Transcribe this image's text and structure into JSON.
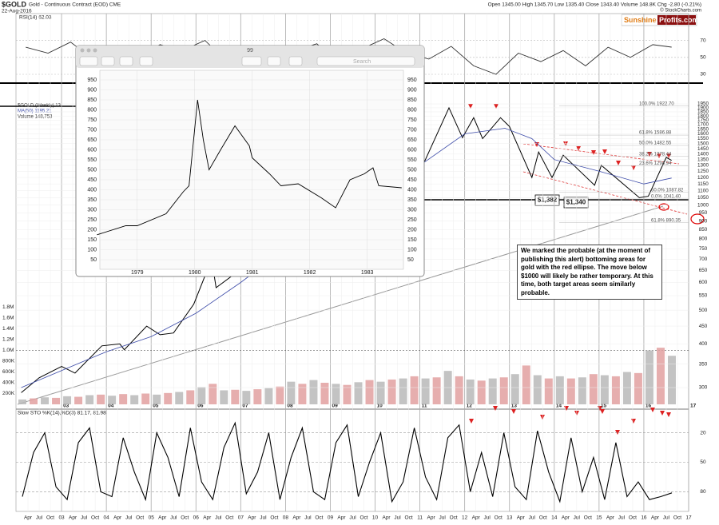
{
  "header": {
    "symbol": "$GOLD",
    "subtitle": "Gold - Continuous Contract (EOD) CME",
    "date": "22-Aug-2016",
    "quote": "Open 1345.00  High 1345.70  Low 1335.40  Close 1343.40  Volume 148.8K  Chg -2.80 (-0.21%)",
    "source": "© StockCharts.com"
  },
  "logo": {
    "part1": "Sunshine",
    "part2": "Profits.com"
  },
  "chart_data": {
    "type": "line",
    "xlim": [
      2002,
      2017
    ],
    "xticks": [
      {
        "value": 2002.25,
        "label": "Apr"
      },
      {
        "value": 2002.5,
        "label": "Jul"
      },
      {
        "value": 2002.75,
        "label": "Oct"
      },
      {
        "value": 2003,
        "label": "03"
      },
      {
        "value": 2003.25,
        "label": "Apr"
      },
      {
        "value": 2003.5,
        "label": "Jul"
      },
      {
        "value": 2003.75,
        "label": "Oct"
      },
      {
        "value": 2004,
        "label": "04"
      },
      {
        "value": 2004.25,
        "label": "Apr"
      },
      {
        "value": 2004.5,
        "label": "Jul"
      },
      {
        "value": 2004.75,
        "label": "Oct"
      },
      {
        "value": 2005,
        "label": "05"
      },
      {
        "value": 2005.25,
        "label": "Apr"
      },
      {
        "value": 2005.5,
        "label": "Jul"
      },
      {
        "value": 2005.75,
        "label": "Oct"
      },
      {
        "value": 2006,
        "label": "06"
      },
      {
        "value": 2006.25,
        "label": "Apr"
      },
      {
        "value": 2006.5,
        "label": "Jul"
      },
      {
        "value": 2006.75,
        "label": "Oct"
      },
      {
        "value": 2007,
        "label": "07"
      },
      {
        "value": 2007.25,
        "label": "Apr"
      },
      {
        "value": 2007.5,
        "label": "Jul"
      },
      {
        "value": 2007.75,
        "label": "Oct"
      },
      {
        "value": 2008,
        "label": "08"
      },
      {
        "value": 2008.25,
        "label": "Apr"
      },
      {
        "value": 2008.5,
        "label": "Jul"
      },
      {
        "value": 2008.75,
        "label": "Oct"
      },
      {
        "value": 2009,
        "label": "09"
      },
      {
        "value": 2009.25,
        "label": "Apr"
      },
      {
        "value": 2009.5,
        "label": "Jul"
      },
      {
        "value": 2009.75,
        "label": "Oct"
      },
      {
        "value": 2010,
        "label": "10"
      },
      {
        "value": 2010.25,
        "label": "Apr"
      },
      {
        "value": 2010.5,
        "label": "Jul"
      },
      {
        "value": 2010.75,
        "label": "Oct"
      },
      {
        "value": 2011,
        "label": "11"
      },
      {
        "value": 2011.25,
        "label": "Apr"
      },
      {
        "value": 2011.5,
        "label": "Jul"
      },
      {
        "value": 2011.75,
        "label": "Oct"
      },
      {
        "value": 2012,
        "label": "12"
      },
      {
        "value": 2012.25,
        "label": "Apr"
      },
      {
        "value": 2012.5,
        "label": "Jul"
      },
      {
        "value": 2012.75,
        "label": "Oct"
      },
      {
        "value": 2013,
        "label": "13"
      },
      {
        "value": 2013.25,
        "label": "Apr"
      },
      {
        "value": 2013.5,
        "label": "Jul"
      },
      {
        "value": 2013.75,
        "label": "Oct"
      },
      {
        "value": 2014,
        "label": "14"
      },
      {
        "value": 2014.25,
        "label": "Apr"
      },
      {
        "value": 2014.5,
        "label": "Jul"
      },
      {
        "value": 2014.75,
        "label": "Oct"
      },
      {
        "value": 2015,
        "label": "15"
      },
      {
        "value": 2015.25,
        "label": "Apr"
      },
      {
        "value": 2015.5,
        "label": "Jul"
      },
      {
        "value": 2015.75,
        "label": "Oct"
      },
      {
        "value": 2016,
        "label": "16"
      },
      {
        "value": 2016.25,
        "label": "Apr"
      },
      {
        "value": 2016.5,
        "label": "Jul"
      },
      {
        "value": 2016.75,
        "label": "Oct"
      },
      {
        "value": 2017,
        "label": "17"
      }
    ],
    "rsi": {
      "label": "RSI(14) 62.03",
      "ylim": [
        20,
        100
      ],
      "yticks": [
        70,
        50,
        30
      ],
      "x": [
        2002.2,
        2002.7,
        2003.2,
        2003.7,
        2004.2,
        2004.7,
        2005.2,
        2005.7,
        2006.2,
        2006.7,
        2007.2,
        2007.7,
        2008.2,
        2008.7,
        2009.2,
        2009.7,
        2010.2,
        2010.7,
        2011.2,
        2011.7,
        2012.2,
        2012.7,
        2013.2,
        2013.7,
        2014.2,
        2014.7,
        2015.2,
        2015.7,
        2016.2,
        2016.62
      ],
      "values": [
        62,
        55,
        68,
        48,
        60,
        52,
        65,
        58,
        70,
        45,
        62,
        50,
        58,
        66,
        42,
        60,
        72,
        55,
        48,
        63,
        40,
        30,
        55,
        45,
        58,
        40,
        62,
        50,
        65,
        62.03
      ],
      "color": "#333333"
    },
    "price": {
      "legend": "$GOLD (Weekly) 13",
      "ma_legend": "MA(50) 1195.21",
      "volume_legend": "Volume 148,753",
      "log_scale": true,
      "ylim": [
        300,
        1950
      ],
      "yticks": [
        1950,
        1900,
        1850,
        1800,
        1750,
        1700,
        1650,
        1600,
        1550,
        1500,
        1450,
        1400,
        1350,
        1300,
        1250,
        1200,
        1150,
        1100,
        1050,
        1000,
        950,
        900,
        850,
        800,
        750,
        700,
        650,
        600,
        550,
        500,
        450,
        400,
        350,
        300
      ],
      "series": [
        {
          "name": "$GOLD (Weekly)",
          "color": "#000000",
          "x": [
            2002.1,
            2002.5,
            2003.0,
            2003.3,
            2003.9,
            2004.3,
            2004.4,
            2004.9,
            2005.2,
            2005.5,
            2005.95,
            2006.35,
            2006.45,
            2006.9,
            2007.5,
            2007.9,
            2008.2,
            2008.8,
            2009.2,
            2009.9,
            2010.1,
            2010.9,
            2011.1,
            2011.65,
            2011.95,
            2012.2,
            2012.4,
            2012.8,
            2013.0,
            2013.5,
            2013.65,
            2013.95,
            2014.2,
            2014.9,
            2015.05,
            2015.9,
            2016.1,
            2016.5,
            2016.62
          ],
          "values": [
            290,
            320,
            345,
            330,
            395,
            400,
            385,
            450,
            425,
            430,
            520,
            700,
            580,
            640,
            660,
            820,
            990,
            730,
            940,
            1200,
            1080,
            1420,
            1330,
            1900,
            1560,
            1780,
            1550,
            1780,
            1680,
            1200,
            1420,
            1200,
            1390,
            1140,
            1300,
            1050,
            1060,
            1370,
            1343.4
          ]
        },
        {
          "name": "MA(50)",
          "color": "#3b4aa8",
          "x": [
            2002.1,
            2004,
            2005,
            2006,
            2007,
            2008,
            2009,
            2010,
            2011,
            2012,
            2012.9,
            2013.5,
            2014,
            2015,
            2016,
            2016.62
          ],
          "values": [
            300,
            380,
            420,
            490,
            600,
            750,
            850,
            1050,
            1300,
            1600,
            1660,
            1550,
            1350,
            1250,
            1150,
            1195.21
          ]
        }
      ],
      "fib_levels": [
        {
          "label": "100.0% 1922.70",
          "value": 1922.7
        },
        {
          "label": "61.8% 1586.88",
          "value": 1586.88
        },
        {
          "label": "50.0% 1482.55",
          "value": 1482.55
        },
        {
          "label": "38.2% 1378.44",
          "value": 1378.44
        },
        {
          "label": "23.6% 1294.94",
          "value": 1294.94
        },
        {
          "label": "50.0% 1087.82",
          "value": 1087.82
        },
        {
          "label": "0.0% 1041.40",
          "value": 1041.4
        },
        {
          "label": "61.8% 890.35",
          "value": 890.35
        }
      ],
      "price_labels": [
        "$1,382",
        "$1,340"
      ],
      "note": "We marked the probable (at the moment of publishing this alert) bottoming areas for gold with the red ellipse. The move below $1000 will likely be rather temporary. At this time, both target areas seem similarly probable."
    },
    "volume": {
      "ylim": [
        0,
        1800000
      ],
      "yticks": [
        {
          "value": 1800000,
          "label": "1.8M"
        },
        {
          "value": 1600000,
          "label": "1.6M"
        },
        {
          "value": 1400000,
          "label": "1.4M"
        },
        {
          "value": 1200000,
          "label": "1.2M"
        },
        {
          "value": 1000000,
          "label": "1.0M"
        },
        {
          "value": 800000,
          "label": "800K"
        },
        {
          "value": 600000,
          "label": "600K"
        },
        {
          "value": 400000,
          "label": "400K"
        },
        {
          "value": 200000,
          "label": "200K"
        }
      ],
      "colors": [
        "#b8b8b8",
        "#e2a0a0"
      ],
      "x": [
        2002.125,
        2002.375,
        2002.625,
        2002.875,
        2003.125,
        2003.375,
        2003.625,
        2003.875,
        2004.125,
        2004.375,
        2004.625,
        2004.875,
        2005.125,
        2005.375,
        2005.625,
        2005.875,
        2006.125,
        2006.375,
        2006.625,
        2006.875,
        2007.125,
        2007.375,
        2007.625,
        2007.875,
        2008.125,
        2008.375,
        2008.625,
        2008.875,
        2009.125,
        2009.375,
        2009.625,
        2009.875,
        2010.125,
        2010.375,
        2010.625,
        2010.875,
        2011.125,
        2011.375,
        2011.625,
        2011.875,
        2012.125,
        2012.375,
        2012.625,
        2012.875,
        2013.125,
        2013.375,
        2013.625,
        2013.875,
        2014.125,
        2014.375,
        2014.625,
        2014.875,
        2015.125,
        2015.375,
        2015.625,
        2015.875,
        2016.125,
        2016.375,
        2016.625
      ],
      "values": [
        90000,
        110000,
        130000,
        120000,
        150000,
        140000,
        170000,
        180000,
        160000,
        190000,
        170000,
        200000,
        180000,
        210000,
        230000,
        260000,
        320000,
        380000,
        260000,
        270000,
        250000,
        280000,
        300000,
        330000,
        420000,
        380000,
        450000,
        400000,
        380000,
        360000,
        410000,
        450000,
        420000,
        460000,
        480000,
        520000,
        480000,
        500000,
        620000,
        520000,
        460000,
        440000,
        480000,
        500000,
        560000,
        720000,
        540000,
        480000,
        520000,
        480000,
        500000,
        560000,
        540000,
        520000,
        600000,
        580000,
        1000000,
        1050000,
        900000
      ]
    },
    "stoch": {
      "label": "Slow STO %K(14),%D(3) 81.17, 81.98",
      "ylim": [
        0,
        100
      ],
      "yticks": [
        80,
        50,
        20
      ],
      "color": "#000000",
      "values": [
        85,
        40,
        20,
        75,
        88,
        30,
        15,
        80,
        85,
        25,
        60,
        88,
        20,
        45,
        85,
        15,
        70,
        88,
        35,
        10,
        82,
        60,
        20,
        88,
        45,
        15,
        80,
        88,
        30,
        12,
        85,
        50,
        20,
        90,
        70,
        15,
        65,
        88,
        25,
        12,
        80,
        40,
        85,
        20,
        75,
        88,
        18,
        60,
        90,
        25,
        80,
        45,
        88,
        30,
        85,
        70,
        88,
        85,
        81.17
      ]
    }
  },
  "inset": {
    "title": "99",
    "search": "Search",
    "xlim": [
      1978.35,
      1983.63
    ],
    "ylim": [
      0,
      1000
    ],
    "xticks": [
      {
        "value": 1979,
        "label": "1979"
      },
      {
        "value": 1980,
        "label": "1980"
      },
      {
        "value": 1981,
        "label": "1981"
      },
      {
        "value": 1982,
        "label": "1982"
      },
      {
        "value": 1983,
        "label": "1983"
      }
    ],
    "yticks": [
      950,
      900,
      850,
      800,
      750,
      700,
      650,
      600,
      550,
      500,
      450,
      400,
      350,
      300,
      250,
      200,
      150,
      100,
      50
    ],
    "x": [
      1978.3,
      1978.8,
      1979.0,
      1979.5,
      1979.8,
      1979.9,
      1980.05,
      1980.15,
      1980.25,
      1980.45,
      1980.7,
      1980.95,
      1981.0,
      1981.3,
      1981.5,
      1981.8,
      1982.2,
      1982.45,
      1982.7,
      1982.95,
      1983.1,
      1983.2,
      1983.6
    ],
    "values": [
      175,
      220,
      220,
      280,
      390,
      420,
      850,
      650,
      500,
      600,
      720,
      620,
      560,
      480,
      420,
      430,
      360,
      310,
      450,
      480,
      510,
      420,
      410
    ]
  }
}
